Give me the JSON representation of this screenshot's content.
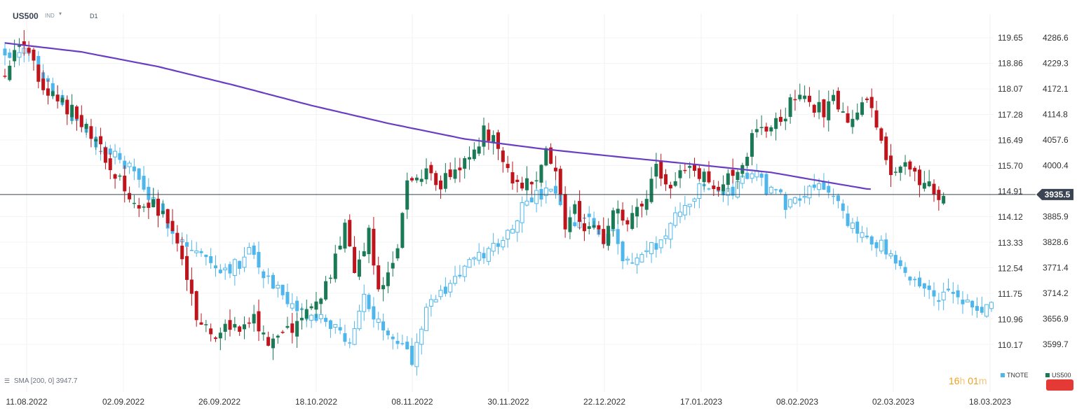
{
  "header": {
    "symbol": "US500",
    "type": "IND",
    "timeframe": "D1"
  },
  "indicator": {
    "label": "SMA [200, 0] 3947.7"
  },
  "legend": {
    "left_label": "TNOTE",
    "right_label": "US500"
  },
  "timer": {
    "hours": "16",
    "h_unit": "h",
    "minutes": "01",
    "m_unit": "m"
  },
  "colors": {
    "up": "#1a7a55",
    "down": "#c0141c",
    "tnote": "#4fb6ec",
    "sma": "#6a3ec2",
    "grid": "#e6e6e6",
    "price_line": "#3a4452",
    "badge": "#3a4452"
  },
  "chart_data": {
    "type": "candlestick",
    "x_labels": [
      "11.08.2022",
      "02.09.2022",
      "26.09.2022",
      "18.10.2022",
      "08.11.2022",
      "30.11.2022",
      "22.12.2022",
      "17.01.2023",
      "08.02.2023",
      "02.03.2023",
      "18.03.2023"
    ],
    "y_right_labels": [
      "4286.6",
      "4229.3",
      "4172.1",
      "4114.8",
      "4057.6",
      "4000.4",
      "3885.9",
      "3828.6",
      "3771.4",
      "3714.2",
      "3656.9",
      "3599.7"
    ],
    "y_left_labels": [
      "119.65",
      "118.86",
      "118.07",
      "117.28",
      "116.49",
      "115.70",
      "114.91",
      "114.12",
      "113.33",
      "112.54",
      "111.75",
      "110.96",
      "110.17"
    ],
    "current_price": "3935.5",
    "sma_period": 200,
    "sma_value": "3947.7",
    "us500_close_anchors": [
      [
        0,
        4210
      ],
      [
        4,
        4283
      ],
      [
        8,
        4158
      ],
      [
        12,
        4142
      ],
      [
        16,
        4100
      ],
      [
        19,
        4060
      ],
      [
        22,
        3985
      ],
      [
        25,
        3950
      ],
      [
        28,
        3905
      ],
      [
        31,
        3910
      ],
      [
        35,
        3855
      ],
      [
        38,
        3760
      ],
      [
        40,
        3650
      ],
      [
        43,
        3620
      ],
      [
        46,
        3640
      ],
      [
        49,
        3640
      ],
      [
        52,
        3660
      ],
      [
        55,
        3590
      ],
      [
        58,
        3625
      ],
      [
        61,
        3640
      ],
      [
        64,
        3685
      ],
      [
        67,
        3725
      ],
      [
        69,
        3800
      ],
      [
        71,
        3860
      ],
      [
        73,
        3750
      ],
      [
        76,
        3850
      ],
      [
        78,
        3725
      ],
      [
        80,
        3770
      ],
      [
        82,
        3810
      ],
      [
        84,
        3960
      ],
      [
        88,
        3995
      ],
      [
        91,
        3955
      ],
      [
        94,
        3990
      ],
      [
        96,
        4015
      ],
      [
        98,
        4030
      ],
      [
        100,
        4080
      ],
      [
        103,
        4045
      ],
      [
        105,
        3985
      ],
      [
        107,
        3965
      ],
      [
        110,
        3955
      ],
      [
        113,
        4030
      ],
      [
        115,
        3975
      ],
      [
        117,
        3870
      ],
      [
        119,
        3900
      ],
      [
        121,
        3850
      ],
      [
        123,
        3860
      ],
      [
        125,
        3830
      ],
      [
        127,
        3900
      ],
      [
        130,
        3860
      ],
      [
        132,
        3900
      ],
      [
        134,
        3935
      ],
      [
        136,
        4010
      ],
      [
        138,
        3945
      ],
      [
        140,
        3980
      ],
      [
        142,
        3990
      ],
      [
        146,
        3970
      ],
      [
        149,
        3945
      ],
      [
        151,
        3975
      ],
      [
        153,
        3985
      ],
      [
        156,
        4060
      ],
      [
        160,
        4090
      ],
      [
        163,
        4115
      ],
      [
        165,
        4160
      ],
      [
        168,
        4140
      ],
      [
        171,
        4120
      ],
      [
        173,
        4155
      ],
      [
        176,
        4085
      ],
      [
        178,
        4110
      ],
      [
        180,
        4160
      ],
      [
        182,
        4080
      ],
      [
        184,
        4000
      ],
      [
        186,
        3990
      ],
      [
        188,
        4020
      ],
      [
        190,
        3975
      ],
      [
        193,
        3965
      ],
      [
        195,
        3940
      ],
      [
        196,
        3930
      ]
    ],
    "tnote_close_anchors": [
      [
        0,
        4255
      ],
      [
        5,
        4255
      ],
      [
        8,
        4200
      ],
      [
        12,
        4140
      ],
      [
        16,
        4080
      ],
      [
        20,
        4040
      ],
      [
        24,
        4015
      ],
      [
        27,
        3985
      ],
      [
        30,
        3930
      ],
      [
        32,
        3900
      ],
      [
        35,
        3860
      ],
      [
        38,
        3820
      ],
      [
        41,
        3800
      ],
      [
        43,
        3780
      ],
      [
        46,
        3770
      ],
      [
        49,
        3780
      ],
      [
        51,
        3830
      ],
      [
        53,
        3770
      ],
      [
        55,
        3750
      ],
      [
        57,
        3720
      ],
      [
        59,
        3680
      ],
      [
        62,
        3670
      ],
      [
        64,
        3655
      ],
      [
        67,
        3655
      ],
      [
        69,
        3630
      ],
      [
        71,
        3610
      ],
      [
        73,
        3625
      ],
      [
        75,
        3720
      ],
      [
        77,
        3650
      ],
      [
        79,
        3635
      ],
      [
        81,
        3625
      ],
      [
        83,
        3605
      ],
      [
        85,
        3565
      ],
      [
        88,
        3690
      ],
      [
        91,
        3710
      ],
      [
        94,
        3750
      ],
      [
        97,
        3780
      ],
      [
        100,
        3800
      ],
      [
        102,
        3820
      ],
      [
        105,
        3850
      ],
      [
        107,
        3890
      ],
      [
        109,
        3930
      ],
      [
        112,
        3930
      ],
      [
        114,
        3950
      ],
      [
        116,
        3900
      ],
      [
        118,
        3860
      ],
      [
        120,
        3875
      ],
      [
        122,
        3880
      ],
      [
        125,
        3830
      ],
      [
        127,
        3870
      ],
      [
        129,
        3790
      ],
      [
        131,
        3780
      ],
      [
        133,
        3800
      ],
      [
        135,
        3815
      ],
      [
        137,
        3830
      ],
      [
        140,
        3880
      ],
      [
        143,
        3925
      ],
      [
        146,
        3955
      ],
      [
        149,
        3945
      ],
      [
        151,
        3935
      ],
      [
        153,
        3960
      ],
      [
        156,
        3990
      ],
      [
        159,
        3950
      ],
      [
        161,
        3945
      ],
      [
        163,
        3915
      ],
      [
        165,
        3925
      ],
      [
        167,
        3945
      ],
      [
        169,
        3960
      ],
      [
        171,
        3960
      ],
      [
        174,
        3910
      ],
      [
        176,
        3860
      ],
      [
        178,
        3855
      ],
      [
        180,
        3845
      ],
      [
        183,
        3820
      ],
      [
        186,
        3775
      ],
      [
        188,
        3750
      ],
      [
        190,
        3745
      ],
      [
        193,
        3715
      ],
      [
        195,
        3710
      ],
      [
        197,
        3710
      ],
      [
        199,
        3700
      ],
      [
        201,
        3690
      ],
      [
        203,
        3670
      ],
      [
        205,
        3685
      ],
      [
        208,
        3695
      ],
      [
        210,
        3690
      ],
      [
        212,
        3700
      ],
      [
        214,
        3700
      ],
      [
        217,
        3690
      ],
      [
        219,
        3665
      ]
    ],
    "sma_anchors": [
      [
        0,
        4275
      ],
      [
        20,
        4255
      ],
      [
        40,
        4222
      ],
      [
        60,
        4180
      ],
      [
        80,
        4135
      ],
      [
        100,
        4095
      ],
      [
        120,
        4060
      ],
      [
        140,
        4038
      ],
      [
        160,
        4020
      ],
      [
        180,
        4003
      ],
      [
        200,
        3985
      ],
      [
        210,
        3970
      ],
      [
        225,
        3948
      ],
      [
        240,
        3940
      ],
      [
        255,
        3938
      ],
      [
        270,
        3940
      ],
      [
        285,
        3941
      ],
      [
        300,
        3945
      ]
    ]
  }
}
